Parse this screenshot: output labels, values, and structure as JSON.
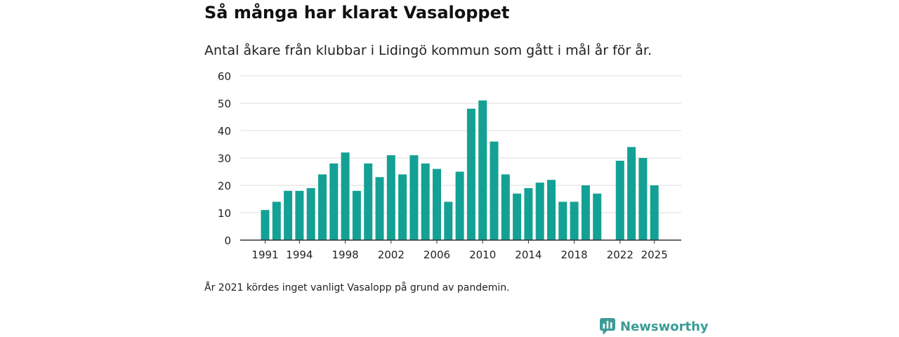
{
  "title": "Så många har klarat Vasaloppet",
  "subtitle": "Antal åkare från klubbar i Lidingö kommun som gått i mål år för år.",
  "note": "År 2021 kördes inget vanligt Vasalopp på grund av pandemin.",
  "brand": {
    "name": "Newsworthy",
    "icon": "newsworthy-logo-icon"
  },
  "colors": {
    "bar": "#14a195",
    "grid": "#dddddd",
    "axis": "#333333",
    "brand": "#3a9c95"
  },
  "chart_data": {
    "type": "bar",
    "title": "Så många har klarat Vasaloppet",
    "xlabel": "",
    "ylabel": "",
    "ylim": [
      0,
      60
    ],
    "yticks": [
      "0",
      "10",
      "20",
      "30",
      "40",
      "50",
      "60"
    ],
    "xticks": [
      "1991",
      "1994",
      "1998",
      "2002",
      "2006",
      "2010",
      "2014",
      "2018",
      "2022",
      "2025"
    ],
    "categories": [
      1991,
      1992,
      1993,
      1994,
      1995,
      1996,
      1997,
      1998,
      1999,
      2000,
      2001,
      2002,
      2003,
      2004,
      2005,
      2006,
      2007,
      2008,
      2009,
      2010,
      2011,
      2012,
      2013,
      2014,
      2015,
      2016,
      2017,
      2018,
      2019,
      2020,
      2021,
      2022,
      2023,
      2024,
      2025
    ],
    "values": [
      11,
      14,
      18,
      18,
      19,
      24,
      28,
      32,
      18,
      28,
      23,
      31,
      24,
      31,
      28,
      26,
      14,
      25,
      48,
      51,
      36,
      24,
      17,
      19,
      21,
      22,
      14,
      14,
      20,
      17,
      null,
      29,
      34,
      30,
      20
    ],
    "grid": true
  }
}
